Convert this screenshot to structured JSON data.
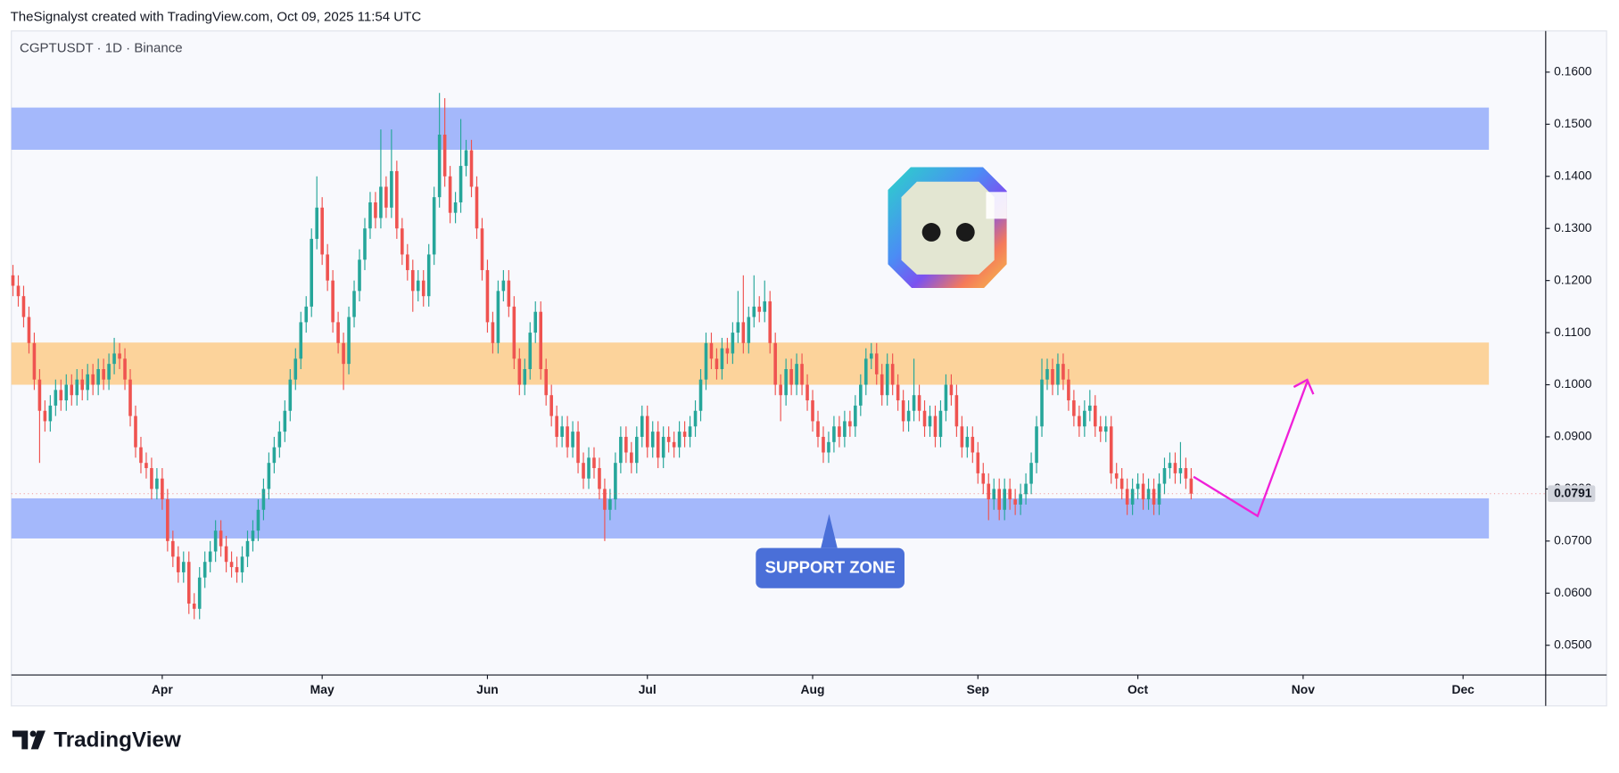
{
  "header": "TheSignalyst created with TradingView.com, Oct 09, 2025 11:54 UTC",
  "footer": "TradingView",
  "chart_data": {
    "type": "candlestick",
    "title": "CGPTUSDT · 1D · Binance",
    "annotation": "SUPPORT ZONE",
    "up_color": "#26a69a",
    "down_color": "#ef5350",
    "last_price": {
      "value": 0.0791,
      "label": "0.0791"
    },
    "xlim": [
      -0.3,
      287.5
    ],
    "ylim": [
      0.0443,
      0.1679
    ],
    "xticks": [
      {
        "value": 28,
        "label": "Apr"
      },
      {
        "value": 58,
        "label": "May"
      },
      {
        "value": 89,
        "label": "Jun"
      },
      {
        "value": 119,
        "label": "Jul"
      },
      {
        "value": 150,
        "label": "Aug"
      },
      {
        "value": 181,
        "label": "Sep"
      },
      {
        "value": 211,
        "label": "Oct"
      },
      {
        "value": 242,
        "label": "Nov"
      },
      {
        "value": 272,
        "label": "Dec"
      }
    ],
    "yticks": [
      {
        "value": 0.05,
        "label": "0.0500"
      },
      {
        "value": 0.06,
        "label": "0.0600"
      },
      {
        "value": 0.07,
        "label": "0.0700"
      },
      {
        "value": 0.08,
        "label": "0.0800"
      },
      {
        "value": 0.09,
        "label": "0.0900"
      },
      {
        "value": 0.1,
        "label": "0.1000"
      },
      {
        "value": 0.11,
        "label": "0.1100"
      },
      {
        "value": 0.12,
        "label": "0.1200"
      },
      {
        "value": 0.13,
        "label": "0.1300"
      },
      {
        "value": 0.14,
        "label": "0.1400"
      },
      {
        "value": 0.15,
        "label": "0.1500"
      },
      {
        "value": 0.16,
        "label": "0.1600"
      }
    ],
    "zones": [
      {
        "from": 0.1451,
        "to": 0.1532,
        "color": "#a4b8fb"
      },
      {
        "from": 0.1,
        "to": 0.1081,
        "color": "#fcd39b"
      },
      {
        "from": 0.0705,
        "to": 0.0782,
        "color": "#a4b8fb"
      }
    ],
    "candles": [
      [
        0.121,
        0.123,
        0.117,
        0.119
      ],
      [
        0.119,
        0.121,
        0.115,
        0.117
      ],
      [
        0.117,
        0.119,
        0.111,
        0.113
      ],
      [
        0.113,
        0.115,
        0.106,
        0.108
      ],
      [
        0.108,
        0.11,
        0.099,
        0.101
      ],
      [
        0.101,
        0.103,
        0.085,
        0.095
      ],
      [
        0.095,
        0.097,
        0.091,
        0.093
      ],
      [
        0.093,
        0.098,
        0.091,
        0.096
      ],
      [
        0.096,
        0.101,
        0.094,
        0.099
      ],
      [
        0.099,
        0.101,
        0.095,
        0.097
      ],
      [
        0.097,
        0.102,
        0.095,
        0.1
      ],
      [
        0.1,
        0.102,
        0.096,
        0.098
      ],
      [
        0.098,
        0.103,
        0.096,
        0.101
      ],
      [
        0.101,
        0.103,
        0.097,
        0.099
      ],
      [
        0.099,
        0.104,
        0.097,
        0.102
      ],
      [
        0.102,
        0.104,
        0.098,
        0.1
      ],
      [
        0.1,
        0.105,
        0.098,
        0.103
      ],
      [
        0.103,
        0.105,
        0.099,
        0.101
      ],
      [
        0.101,
        0.106,
        0.099,
        0.104
      ],
      [
        0.104,
        0.109,
        0.102,
        0.106
      ],
      [
        0.106,
        0.108,
        0.103,
        0.105
      ],
      [
        0.105,
        0.107,
        0.099,
        0.101
      ],
      [
        0.101,
        0.103,
        0.092,
        0.094
      ],
      [
        0.094,
        0.096,
        0.086,
        0.088
      ],
      [
        0.088,
        0.09,
        0.083,
        0.085
      ],
      [
        0.085,
        0.087,
        0.082,
        0.084
      ],
      [
        0.084,
        0.086,
        0.078,
        0.08
      ],
      [
        0.08,
        0.084,
        0.078,
        0.082
      ],
      [
        0.082,
        0.084,
        0.076,
        0.078
      ],
      [
        0.078,
        0.08,
        0.068,
        0.07
      ],
      [
        0.07,
        0.072,
        0.065,
        0.067
      ],
      [
        0.067,
        0.069,
        0.062,
        0.064
      ],
      [
        0.064,
        0.068,
        0.062,
        0.066
      ],
      [
        0.066,
        0.068,
        0.056,
        0.058
      ],
      [
        0.058,
        0.06,
        0.055,
        0.057
      ],
      [
        0.057,
        0.065,
        0.055,
        0.063
      ],
      [
        0.063,
        0.068,
        0.061,
        0.066
      ],
      [
        0.066,
        0.07,
        0.064,
        0.068
      ],
      [
        0.068,
        0.074,
        0.066,
        0.072
      ],
      [
        0.072,
        0.074,
        0.067,
        0.069
      ],
      [
        0.069,
        0.071,
        0.064,
        0.066
      ],
      [
        0.066,
        0.068,
        0.063,
        0.065
      ],
      [
        0.065,
        0.067,
        0.062,
        0.064
      ],
      [
        0.064,
        0.069,
        0.062,
        0.067
      ],
      [
        0.067,
        0.072,
        0.065,
        0.07
      ],
      [
        0.07,
        0.074,
        0.068,
        0.072
      ],
      [
        0.072,
        0.078,
        0.07,
        0.076
      ],
      [
        0.076,
        0.082,
        0.074,
        0.08
      ],
      [
        0.08,
        0.087,
        0.078,
        0.085
      ],
      [
        0.085,
        0.09,
        0.083,
        0.088
      ],
      [
        0.088,
        0.093,
        0.086,
        0.091
      ],
      [
        0.091,
        0.097,
        0.089,
        0.095
      ],
      [
        0.095,
        0.103,
        0.093,
        0.101
      ],
      [
        0.101,
        0.107,
        0.099,
        0.105
      ],
      [
        0.105,
        0.114,
        0.103,
        0.112
      ],
      [
        0.112,
        0.117,
        0.11,
        0.115
      ],
      [
        0.115,
        0.13,
        0.113,
        0.128
      ],
      [
        0.128,
        0.14,
        0.126,
        0.134
      ],
      [
        0.134,
        0.136,
        0.123,
        0.125
      ],
      [
        0.125,
        0.127,
        0.118,
        0.12
      ],
      [
        0.12,
        0.122,
        0.11,
        0.112
      ],
      [
        0.112,
        0.114,
        0.106,
        0.108
      ],
      [
        0.108,
        0.11,
        0.099,
        0.104
      ],
      [
        0.104,
        0.115,
        0.102,
        0.113
      ],
      [
        0.113,
        0.12,
        0.111,
        0.118
      ],
      [
        0.118,
        0.126,
        0.116,
        0.124
      ],
      [
        0.124,
        0.132,
        0.122,
        0.13
      ],
      [
        0.13,
        0.137,
        0.128,
        0.135
      ],
      [
        0.135,
        0.137,
        0.13,
        0.132
      ],
      [
        0.132,
        0.149,
        0.13,
        0.138
      ],
      [
        0.138,
        0.14,
        0.132,
        0.134
      ],
      [
        0.134,
        0.149,
        0.132,
        0.141
      ],
      [
        0.141,
        0.143,
        0.128,
        0.13
      ],
      [
        0.13,
        0.132,
        0.123,
        0.125
      ],
      [
        0.125,
        0.127,
        0.12,
        0.122
      ],
      [
        0.122,
        0.124,
        0.114,
        0.118
      ],
      [
        0.118,
        0.122,
        0.116,
        0.12
      ],
      [
        0.12,
        0.122,
        0.115,
        0.117
      ],
      [
        0.117,
        0.127,
        0.115,
        0.125
      ],
      [
        0.125,
        0.138,
        0.123,
        0.136
      ],
      [
        0.136,
        0.156,
        0.134,
        0.148
      ],
      [
        0.148,
        0.155,
        0.138,
        0.14
      ],
      [
        0.14,
        0.142,
        0.131,
        0.133
      ],
      [
        0.133,
        0.137,
        0.131,
        0.135
      ],
      [
        0.135,
        0.151,
        0.133,
        0.142
      ],
      [
        0.142,
        0.147,
        0.14,
        0.145
      ],
      [
        0.145,
        0.147,
        0.136,
        0.138
      ],
      [
        0.138,
        0.14,
        0.128,
        0.13
      ],
      [
        0.13,
        0.132,
        0.12,
        0.122
      ],
      [
        0.122,
        0.124,
        0.11,
        0.112
      ],
      [
        0.112,
        0.114,
        0.106,
        0.108
      ],
      [
        0.108,
        0.12,
        0.106,
        0.118
      ],
      [
        0.118,
        0.122,
        0.116,
        0.12
      ],
      [
        0.12,
        0.122,
        0.113,
        0.115
      ],
      [
        0.115,
        0.117,
        0.103,
        0.105
      ],
      [
        0.105,
        0.107,
        0.098,
        0.1
      ],
      [
        0.1,
        0.105,
        0.098,
        0.103
      ],
      [
        0.103,
        0.112,
        0.101,
        0.11
      ],
      [
        0.11,
        0.116,
        0.108,
        0.114
      ],
      [
        0.114,
        0.116,
        0.101,
        0.103
      ],
      [
        0.103,
        0.105,
        0.096,
        0.098
      ],
      [
        0.098,
        0.1,
        0.092,
        0.094
      ],
      [
        0.094,
        0.096,
        0.088,
        0.09
      ],
      [
        0.09,
        0.094,
        0.088,
        0.092
      ],
      [
        0.092,
        0.094,
        0.086,
        0.088
      ],
      [
        0.088,
        0.093,
        0.086,
        0.091
      ],
      [
        0.091,
        0.093,
        0.083,
        0.085
      ],
      [
        0.085,
        0.087,
        0.08,
        0.082
      ],
      [
        0.082,
        0.088,
        0.08,
        0.086
      ],
      [
        0.086,
        0.088,
        0.082,
        0.084
      ],
      [
        0.084,
        0.086,
        0.078,
        0.08
      ],
      [
        0.08,
        0.082,
        0.07,
        0.076
      ],
      [
        0.076,
        0.08,
        0.074,
        0.078
      ],
      [
        0.078,
        0.087,
        0.076,
        0.085
      ],
      [
        0.085,
        0.092,
        0.083,
        0.09
      ],
      [
        0.09,
        0.092,
        0.085,
        0.087
      ],
      [
        0.087,
        0.089,
        0.083,
        0.085
      ],
      [
        0.085,
        0.092,
        0.083,
        0.09
      ],
      [
        0.09,
        0.096,
        0.088,
        0.094
      ],
      [
        0.094,
        0.096,
        0.086,
        0.088
      ],
      [
        0.088,
        0.093,
        0.086,
        0.091
      ],
      [
        0.091,
        0.093,
        0.084,
        0.086
      ],
      [
        0.086,
        0.092,
        0.084,
        0.09
      ],
      [
        0.09,
        0.092,
        0.087,
        0.089
      ],
      [
        0.089,
        0.091,
        0.086,
        0.088
      ],
      [
        0.088,
        0.093,
        0.086,
        0.091
      ],
      [
        0.091,
        0.093,
        0.088,
        0.09
      ],
      [
        0.09,
        0.094,
        0.088,
        0.092
      ],
      [
        0.092,
        0.097,
        0.09,
        0.095
      ],
      [
        0.095,
        0.103,
        0.093,
        0.101
      ],
      [
        0.101,
        0.11,
        0.099,
        0.108
      ],
      [
        0.108,
        0.11,
        0.103,
        0.105
      ],
      [
        0.105,
        0.107,
        0.101,
        0.103
      ],
      [
        0.103,
        0.109,
        0.101,
        0.107
      ],
      [
        0.107,
        0.109,
        0.104,
        0.106
      ],
      [
        0.106,
        0.112,
        0.104,
        0.11
      ],
      [
        0.11,
        0.118,
        0.108,
        0.112
      ],
      [
        0.112,
        0.121,
        0.106,
        0.108
      ],
      [
        0.108,
        0.115,
        0.106,
        0.113
      ],
      [
        0.113,
        0.121,
        0.111,
        0.115
      ],
      [
        0.115,
        0.117,
        0.112,
        0.114
      ],
      [
        0.114,
        0.12,
        0.112,
        0.116
      ],
      [
        0.116,
        0.118,
        0.106,
        0.108
      ],
      [
        0.108,
        0.11,
        0.098,
        0.1
      ],
      [
        0.1,
        0.102,
        0.093,
        0.098
      ],
      [
        0.098,
        0.105,
        0.096,
        0.103
      ],
      [
        0.103,
        0.105,
        0.098,
        0.1
      ],
      [
        0.1,
        0.106,
        0.098,
        0.104
      ],
      [
        0.104,
        0.106,
        0.098,
        0.1
      ],
      [
        0.1,
        0.102,
        0.095,
        0.097
      ],
      [
        0.097,
        0.099,
        0.091,
        0.093
      ],
      [
        0.093,
        0.095,
        0.088,
        0.09
      ],
      [
        0.09,
        0.092,
        0.085,
        0.087
      ],
      [
        0.087,
        0.091,
        0.085,
        0.089
      ],
      [
        0.089,
        0.094,
        0.087,
        0.092
      ],
      [
        0.092,
        0.094,
        0.088,
        0.09
      ],
      [
        0.09,
        0.095,
        0.088,
        0.093
      ],
      [
        0.093,
        0.095,
        0.09,
        0.092
      ],
      [
        0.092,
        0.098,
        0.09,
        0.096
      ],
      [
        0.096,
        0.102,
        0.094,
        0.1
      ],
      [
        0.1,
        0.107,
        0.098,
        0.105
      ],
      [
        0.105,
        0.108,
        0.103,
        0.106
      ],
      [
        0.106,
        0.108,
        0.1,
        0.102
      ],
      [
        0.102,
        0.104,
        0.096,
        0.098
      ],
      [
        0.098,
        0.106,
        0.096,
        0.104
      ],
      [
        0.104,
        0.106,
        0.098,
        0.1
      ],
      [
        0.1,
        0.102,
        0.095,
        0.097
      ],
      [
        0.097,
        0.099,
        0.091,
        0.093
      ],
      [
        0.093,
        0.097,
        0.091,
        0.095
      ],
      [
        0.095,
        0.105,
        0.093,
        0.098
      ],
      [
        0.098,
        0.1,
        0.093,
        0.095
      ],
      [
        0.095,
        0.097,
        0.09,
        0.092
      ],
      [
        0.092,
        0.096,
        0.09,
        0.094
      ],
      [
        0.094,
        0.096,
        0.088,
        0.09
      ],
      [
        0.09,
        0.097,
        0.088,
        0.095
      ],
      [
        0.095,
        0.102,
        0.093,
        0.1
      ],
      [
        0.1,
        0.102,
        0.096,
        0.098
      ],
      [
        0.098,
        0.1,
        0.09,
        0.092
      ],
      [
        0.092,
        0.094,
        0.086,
        0.088
      ],
      [
        0.088,
        0.092,
        0.086,
        0.09
      ],
      [
        0.09,
        0.092,
        0.085,
        0.087
      ],
      [
        0.087,
        0.089,
        0.081,
        0.083
      ],
      [
        0.083,
        0.085,
        0.079,
        0.081
      ],
      [
        0.081,
        0.083,
        0.074,
        0.078
      ],
      [
        0.078,
        0.082,
        0.076,
        0.08
      ],
      [
        0.08,
        0.082,
        0.074,
        0.076
      ],
      [
        0.076,
        0.082,
        0.074,
        0.08
      ],
      [
        0.08,
        0.082,
        0.076,
        0.078
      ],
      [
        0.078,
        0.08,
        0.075,
        0.077
      ],
      [
        0.077,
        0.081,
        0.075,
        0.079
      ],
      [
        0.079,
        0.083,
        0.077,
        0.081
      ],
      [
        0.081,
        0.087,
        0.079,
        0.085
      ],
      [
        0.085,
        0.094,
        0.083,
        0.092
      ],
      [
        0.092,
        0.105,
        0.09,
        0.101
      ],
      [
        0.101,
        0.105,
        0.099,
        0.103
      ],
      [
        0.103,
        0.105,
        0.098,
        0.1
      ],
      [
        0.1,
        0.106,
        0.098,
        0.104
      ],
      [
        0.104,
        0.106,
        0.099,
        0.101
      ],
      [
        0.101,
        0.103,
        0.095,
        0.097
      ],
      [
        0.097,
        0.099,
        0.092,
        0.094
      ],
      [
        0.094,
        0.096,
        0.09,
        0.092
      ],
      [
        0.092,
        0.097,
        0.09,
        0.095
      ],
      [
        0.095,
        0.099,
        0.093,
        0.096
      ],
      [
        0.096,
        0.098,
        0.09,
        0.092
      ],
      [
        0.092,
        0.094,
        0.089,
        0.091
      ],
      [
        0.091,
        0.094,
        0.089,
        0.092
      ],
      [
        0.092,
        0.094,
        0.081,
        0.083
      ],
      [
        0.083,
        0.085,
        0.08,
        0.082
      ],
      [
        0.082,
        0.084,
        0.078,
        0.08
      ],
      [
        0.08,
        0.082,
        0.075,
        0.077
      ],
      [
        0.077,
        0.082,
        0.075,
        0.08
      ],
      [
        0.08,
        0.083,
        0.078,
        0.081
      ],
      [
        0.081,
        0.083,
        0.076,
        0.078
      ],
      [
        0.078,
        0.082,
        0.076,
        0.08
      ],
      [
        0.08,
        0.082,
        0.075,
        0.077
      ],
      [
        0.077,
        0.083,
        0.075,
        0.081
      ],
      [
        0.081,
        0.086,
        0.079,
        0.084
      ],
      [
        0.084,
        0.087,
        0.082,
        0.085
      ],
      [
        0.085,
        0.087,
        0.081,
        0.083
      ],
      [
        0.083,
        0.089,
        0.081,
        0.084
      ],
      [
        0.084,
        0.086,
        0.08,
        0.082
      ],
      [
        0.082,
        0.084,
        0.078,
        0.0791
      ]
    ]
  }
}
